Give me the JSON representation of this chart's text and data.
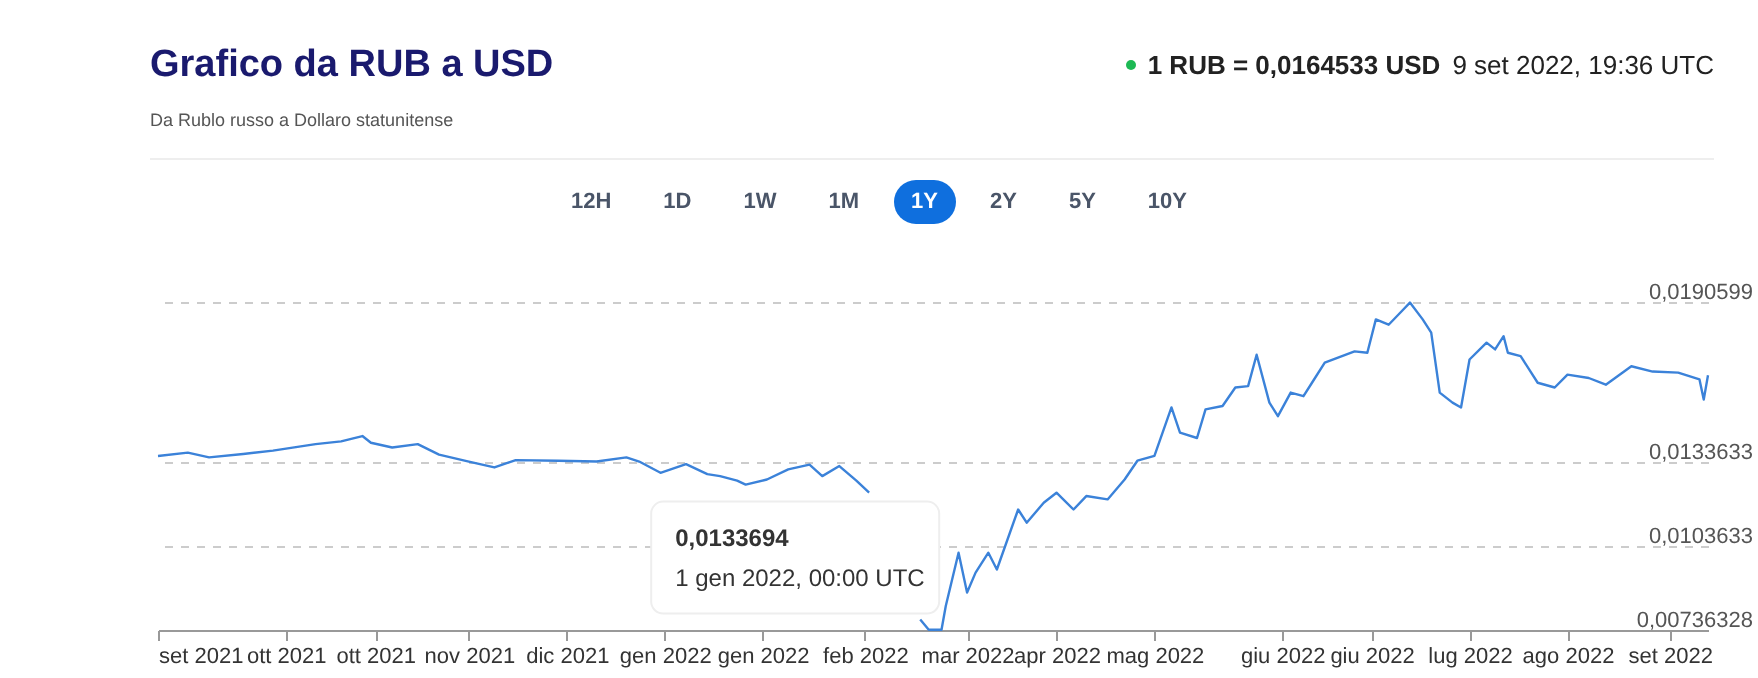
{
  "chart_data": {
    "type": "line",
    "title": "Grafico da RUB a USD",
    "subtitle": "Da Rublo russo a Dollaro statunitense",
    "annotations": [
      "1 RUB = 0,0164533 USD",
      "9 set 2022, 19:36 UTC",
      "12H",
      "1D",
      "1W",
      "1M",
      "1Y",
      "2Y",
      "5Y",
      "10Y",
      {
        "text": "0,0133694",
        "x": "2022-01-01",
        "y": 0.0133694
      },
      "1 gen 2022, 00:00 UTC"
    ],
    "x": [
      "2021-09-10",
      "2021-09-17",
      "2021-09-22",
      "2021-09-30",
      "2021-10-07",
      "2021-10-17",
      "2021-10-23",
      "2021-10-28",
      "2021-10-30",
      "2021-11-04",
      "2021-11-10",
      "2021-11-15",
      "2021-11-22",
      "2021-11-28",
      "2021-12-03",
      "2021-12-13",
      "2021-12-22",
      "2021-12-29",
      "2022-01-01",
      "2022-01-06",
      "2022-01-12",
      "2022-01-17",
      "2022-01-20",
      "2022-01-24",
      "2022-01-26",
      "2022-01-31",
      "2022-02-05",
      "2022-02-10",
      "2022-02-13",
      "2022-02-17",
      "2022-02-21",
      "2022-02-24",
      "2022-03-01",
      "2022-03-08",
      "2022-03-10",
      "2022-03-13",
      "2022-03-14",
      "2022-03-17",
      "2022-03-19",
      "2022-03-21",
      "2022-03-24",
      "2022-03-26",
      "2022-03-31",
      "2022-04-02",
      "2022-04-06",
      "2022-04-09",
      "2022-04-13",
      "2022-04-16",
      "2022-04-21",
      "2022-04-25",
      "2022-04-28",
      "2022-05-02",
      "2022-05-06",
      "2022-05-08",
      "2022-05-12",
      "2022-05-14",
      "2022-05-18",
      "2022-05-21",
      "2022-05-24",
      "2022-05-26",
      "2022-05-29",
      "2022-05-31",
      "2022-06-03",
      "2022-06-06",
      "2022-06-08",
      "2022-06-11",
      "2022-06-18",
      "2022-06-21",
      "2022-06-23",
      "2022-06-26",
      "2022-06-29",
      "2022-07-01",
      "2022-07-04",
      "2022-07-06",
      "2022-07-08",
      "2022-07-11",
      "2022-07-13",
      "2022-07-15",
      "2022-07-19",
      "2022-07-21",
      "2022-07-23",
      "2022-07-24",
      "2022-07-27",
      "2022-07-31",
      "2022-08-04",
      "2022-08-07",
      "2022-08-12",
      "2022-08-16",
      "2022-08-22",
      "2022-08-27",
      "2022-09-02",
      "2022-09-07",
      "2022-09-08",
      "2022-09-09"
    ],
    "series": [
      {
        "color": "#3b82d9",
        "values": [
          0.01357,
          0.01369,
          0.01352,
          0.01364,
          0.01376,
          0.01399,
          0.01409,
          0.01428,
          0.01404,
          0.01387,
          0.01399,
          0.01362,
          0.01337,
          0.01316,
          0.01342,
          0.0134,
          0.01337,
          0.01352,
          0.01337,
          0.01297,
          0.01328,
          0.01292,
          0.01285,
          0.01269,
          0.01255,
          0.01273,
          0.01309,
          0.01326,
          0.01285,
          0.01321,
          0.01269,
          0.01226,
          null,
          0.00774,
          0.00737,
          0.00737,
          0.00822,
          0.01012,
          0.0087,
          0.00941,
          0.01012,
          0.00952,
          0.01166,
          0.01119,
          0.0119,
          0.01226,
          0.01166,
          0.01214,
          0.01202,
          0.01273,
          0.0134,
          0.01357,
          0.0153,
          0.0144,
          0.01421,
          0.01523,
          0.01535,
          0.01601,
          0.01606,
          0.01718,
          0.01547,
          0.01499,
          0.01583,
          0.0157,
          0.01618,
          0.0169,
          0.0173,
          0.01725,
          0.01844,
          0.01825,
          0.01872,
          0.01904,
          0.01844,
          0.01797,
          0.01583,
          0.01547,
          0.0153,
          0.01701,
          0.01761,
          0.01737,
          0.01784,
          0.01725,
          0.01713,
          0.01618,
          0.01601,
          0.01647,
          0.01635,
          0.01611,
          0.01677,
          0.01658,
          0.01654,
          0.0163,
          0.01558,
          0.01645
        ]
      }
    ],
    "xlim": [
      "2021-09-10",
      "2022-09-09"
    ],
    "xticks": [
      {
        "value": "2021-09-10",
        "label": "set 2021"
      },
      {
        "value": "2021-10-10",
        "label": "ott 2021"
      },
      {
        "value": "2021-10-31",
        "label": "ott 2021"
      },
      {
        "value": "2021-11-22",
        "label": "nov 2021"
      },
      {
        "value": "2021-12-15",
        "label": "dic 2021"
      },
      {
        "value": "2022-01-07",
        "label": "gen 2022"
      },
      {
        "value": "2022-01-30",
        "label": "gen 2022"
      },
      {
        "value": "2022-02-23",
        "label": "feb 2022"
      },
      {
        "value": "2022-03-19",
        "label": "mar 2022"
      },
      {
        "value": "2022-04-09",
        "label": "apr 2022"
      },
      {
        "value": "2022-05-02",
        "label": "mag 2022"
      },
      {
        "value": "2022-06-01",
        "label": "giu 2022"
      },
      {
        "value": "2022-06-22",
        "label": "giu 2022"
      },
      {
        "value": "2022-07-15",
        "label": "lug 2022"
      },
      {
        "value": "2022-08-07",
        "label": "ago 2022"
      },
      {
        "value": "2022-08-31",
        "label": "set 2022"
      }
    ],
    "ylim": [
      0.00736328,
      0.0190599
    ],
    "yticks": [
      {
        "value": 0.00736328,
        "label": "0,00736328"
      },
      {
        "value": 0.0103633,
        "label": "0,0103633"
      },
      {
        "value": 0.0133633,
        "label": "0,0133633"
      },
      {
        "value": 0.0190599,
        "label": "0,0190599"
      }
    ],
    "grid": "y"
  }
}
